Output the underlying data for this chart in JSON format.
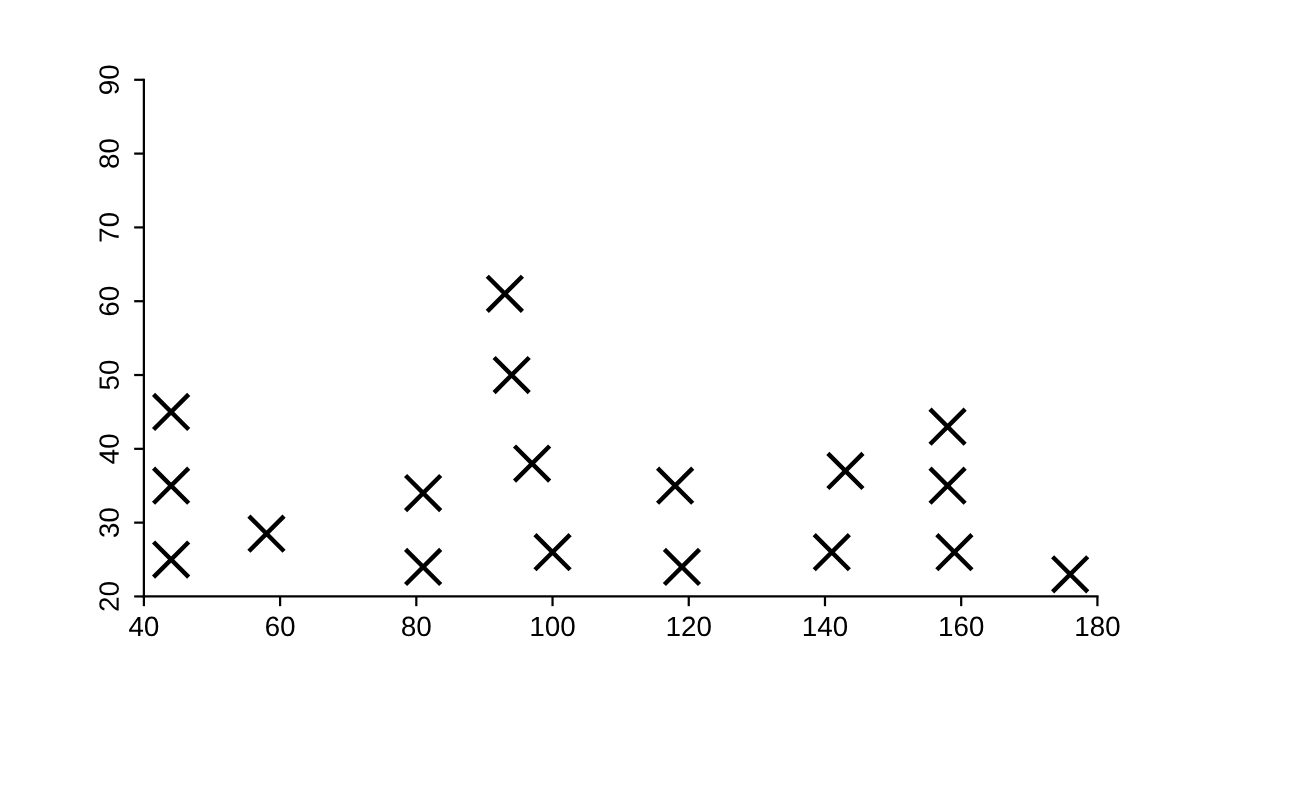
{
  "chart_data": {
    "type": "scatter",
    "x": [
      44,
      44,
      44,
      58,
      81,
      81,
      93,
      94,
      97,
      100,
      118,
      119,
      141,
      143,
      159,
      158,
      158,
      176
    ],
    "values": [
      25,
      35,
      45,
      28.5,
      24,
      34,
      61,
      50,
      38,
      26,
      35,
      24,
      26,
      37,
      26,
      35,
      43,
      23
    ],
    "color": "#000000",
    "marker": "cross",
    "grid": false,
    "legend": false,
    "xlim": [
      40,
      180
    ],
    "xticks": [
      40,
      60,
      80,
      100,
      120,
      140,
      160,
      180
    ],
    "ylim": [
      20,
      90
    ],
    "yticks": [
      20,
      30,
      40,
      50,
      60,
      70,
      80,
      90
    ]
  }
}
